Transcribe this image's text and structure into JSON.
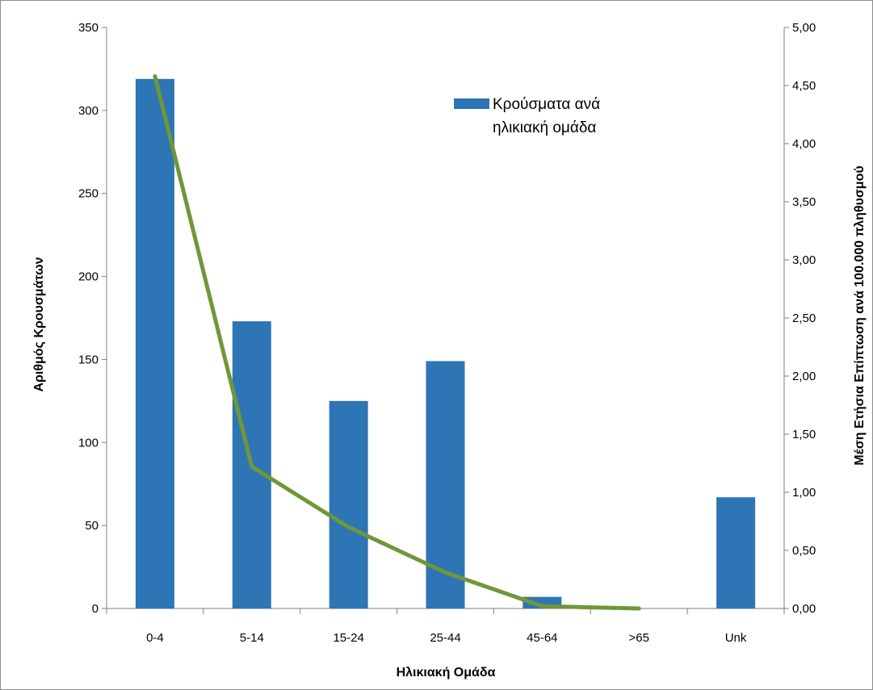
{
  "chart_data": {
    "type": "bar",
    "title": "",
    "categories": [
      "0-4",
      "5-14",
      "15-24",
      "25-44",
      "45-64",
      ">65",
      "Unk"
    ],
    "series": [
      {
        "name": "Κρούσματα ανά ηλικιακή ομάδα",
        "type": "bar",
        "axis": "left",
        "color": "#2e75b6",
        "values": [
          319,
          173,
          125,
          149,
          7,
          0,
          67
        ]
      },
      {
        "type": "line",
        "axis": "right",
        "color": "#70963a",
        "values": [
          4.58,
          1.22,
          0.7,
          0.31,
          0.02,
          0.0,
          null
        ]
      }
    ],
    "xlabel": "Ηλικιακή Ομάδα",
    "ylabel": "Αριθμός Κρουσμάτων",
    "y2label": "Μέση Ετήσια Επίπτωση ανά 100.000 πληθυσμού",
    "ylim": [
      0,
      350
    ],
    "y2lim": [
      0,
      5
    ],
    "yticks": [
      "0",
      "50",
      "100",
      "150",
      "200",
      "250",
      "300",
      "350"
    ],
    "y2ticks": [
      "0,00",
      "0,50",
      "1,00",
      "1,50",
      "2,00",
      "2,50",
      "3,00",
      "3,50",
      "4,00",
      "4,50",
      "5,00"
    ],
    "legend": {
      "position": "top-right",
      "line1": "Κρούσματα ανά",
      "line2": "ηλικιακή ομάδα"
    },
    "grid": false
  }
}
